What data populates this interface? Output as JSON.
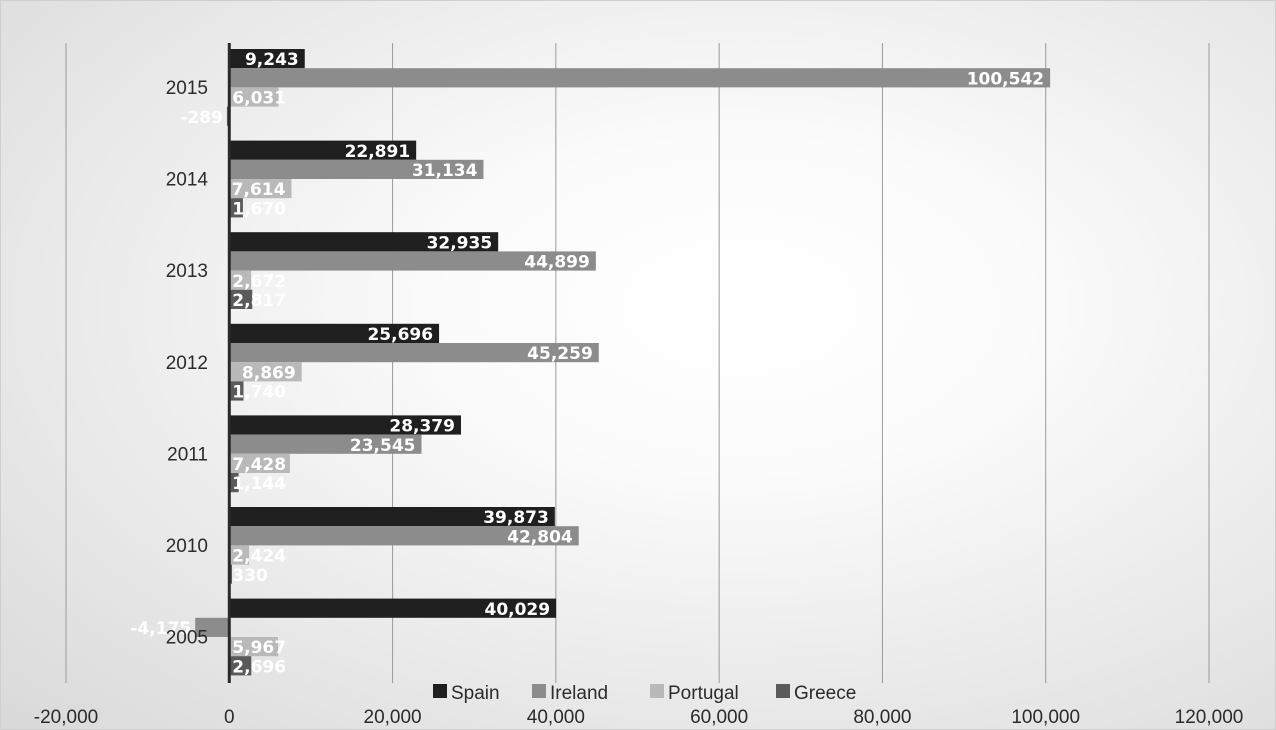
{
  "chart_data": {
    "type": "bar",
    "orientation": "horizontal",
    "categories": [
      "2005",
      "2010",
      "2011",
      "2012",
      "2013",
      "2014",
      "2015"
    ],
    "series": [
      {
        "name": "Spain",
        "color": "#1f1f1f",
        "values": [
          40029,
          39873,
          28379,
          25696,
          32935,
          22891,
          9243
        ]
      },
      {
        "name": "Ireland",
        "color": "#8c8c8c",
        "values": [
          -4175,
          42804,
          23545,
          45259,
          44899,
          31134,
          100542
        ]
      },
      {
        "name": "Portugal",
        "color": "#b9b9b9",
        "values": [
          5967,
          2424,
          7428,
          8869,
          2672,
          7614,
          6031
        ]
      },
      {
        "name": "Greece",
        "color": "#5a5a5a",
        "values": [
          2696,
          330,
          1144,
          1740,
          2817,
          1670,
          -289
        ]
      }
    ],
    "data_labels": [
      [
        "40,029",
        "39,873",
        "28,379",
        "25,696",
        "32,935",
        "22,891",
        "9,243"
      ],
      [
        "-4,175",
        "42,804",
        "23,545",
        "45,259",
        "44,899",
        "31,134",
        "100,542"
      ],
      [
        "5,967",
        "2,424",
        "7,428",
        "8,869",
        "2,672",
        "7,614",
        "6,031"
      ],
      [
        "2,696",
        "330",
        "1,144",
        "1,740",
        "2,817",
        "1,670",
        "-289"
      ]
    ],
    "x_ticks": [
      -20000,
      0,
      20000,
      40000,
      60000,
      80000,
      100000,
      120000
    ],
    "x_tick_labels": [
      "-20,000",
      "0",
      "20,000",
      "40,000",
      "60,000",
      "80,000",
      "100,000",
      "120,000"
    ],
    "xlim": [
      -20000,
      120000
    ],
    "title": "",
    "xlabel": "",
    "ylabel": "",
    "grid": true,
    "legend_position": "bottom"
  }
}
